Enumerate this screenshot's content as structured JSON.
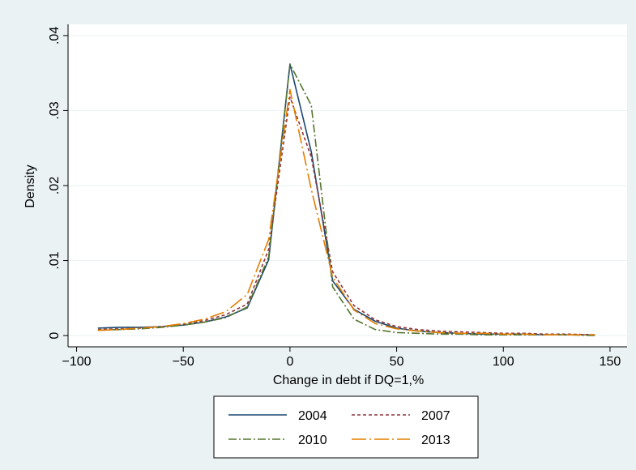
{
  "chart_data": {
    "type": "line",
    "xlabel": "Change in debt if DQ=1,%",
    "ylabel": "Density",
    "xlim": [
      -100,
      150
    ],
    "ylim": [
      0,
      0.04
    ],
    "xticks": [
      -100,
      -50,
      0,
      50,
      100,
      150
    ],
    "xtick_labels": [
      "−100",
      "−50",
      "0",
      "50",
      "100",
      "150"
    ],
    "yticks": [
      0,
      0.01,
      0.02,
      0.03,
      0.04
    ],
    "ytick_labels": [
      "0",
      ".01",
      ".02",
      ".03",
      ".04"
    ],
    "grid": true,
    "legend_position": "bottom",
    "series": [
      {
        "name": "2004",
        "color": "#1a476f",
        "dash": "solid",
        "x": [
          -90,
          -80,
          -70,
          -60,
          -50,
          -40,
          -30,
          -20,
          -10,
          0,
          10,
          20,
          30,
          40,
          50,
          60,
          70,
          80,
          90,
          100,
          110,
          120,
          130,
          143
        ],
        "y": [
          0.001,
          0.0011,
          0.0011,
          0.0012,
          0.0014,
          0.0018,
          0.0025,
          0.0037,
          0.0101,
          0.0362,
          0.0245,
          0.0073,
          0.0035,
          0.0019,
          0.001,
          0.0006,
          0.0004,
          0.0003,
          0.0002,
          0.0002,
          0.0002,
          0.0001,
          0.0001,
          0.0001
        ]
      },
      {
        "name": "2007",
        "color": "#90353b",
        "dash": "short-dash",
        "x": [
          -90,
          -80,
          -70,
          -60,
          -50,
          -40,
          -30,
          -20,
          -10,
          0,
          10,
          20,
          30,
          40,
          50,
          60,
          70,
          80,
          90,
          100,
          110,
          120,
          130,
          143
        ],
        "y": [
          0.0008,
          0.0009,
          0.001,
          0.0012,
          0.0015,
          0.002,
          0.0028,
          0.0042,
          0.0115,
          0.0318,
          0.0238,
          0.0085,
          0.004,
          0.0021,
          0.0012,
          0.0008,
          0.0006,
          0.0005,
          0.0004,
          0.0003,
          0.0003,
          0.0002,
          0.0002,
          0.0001
        ]
      },
      {
        "name": "2010",
        "color": "#55752f",
        "dash": "dash-dot",
        "x": [
          -90,
          -80,
          -70,
          -60,
          -50,
          -40,
          -30,
          -20,
          -10,
          0,
          10,
          20,
          30,
          40,
          50,
          60,
          70,
          80,
          90,
          100,
          110,
          120,
          130,
          143
        ],
        "y": [
          0.0007,
          0.0008,
          0.0009,
          0.0011,
          0.0014,
          0.0018,
          0.0024,
          0.0038,
          0.0105,
          0.0362,
          0.0307,
          0.0065,
          0.0022,
          0.0008,
          0.0004,
          0.0003,
          0.0002,
          0.0002,
          0.0001,
          0.0001,
          0.0001,
          0.0001,
          0.0001,
          0
        ]
      },
      {
        "name": "2013",
        "color": "#e37e00",
        "dash": "long-dash-dot",
        "x": [
          -90,
          -80,
          -70,
          -60,
          -50,
          -40,
          -30,
          -20,
          -10,
          0,
          10,
          20,
          30,
          40,
          50,
          60,
          70,
          80,
          90,
          100,
          110,
          120,
          130,
          143
        ],
        "y": [
          0.0007,
          0.0008,
          0.001,
          0.0012,
          0.0016,
          0.0022,
          0.0032,
          0.0055,
          0.0128,
          0.0328,
          0.0195,
          0.0078,
          0.0034,
          0.0016,
          0.0009,
          0.0006,
          0.0004,
          0.0003,
          0.0003,
          0.0002,
          0.0002,
          0.0001,
          0.0001,
          0.0001
        ]
      }
    ]
  }
}
